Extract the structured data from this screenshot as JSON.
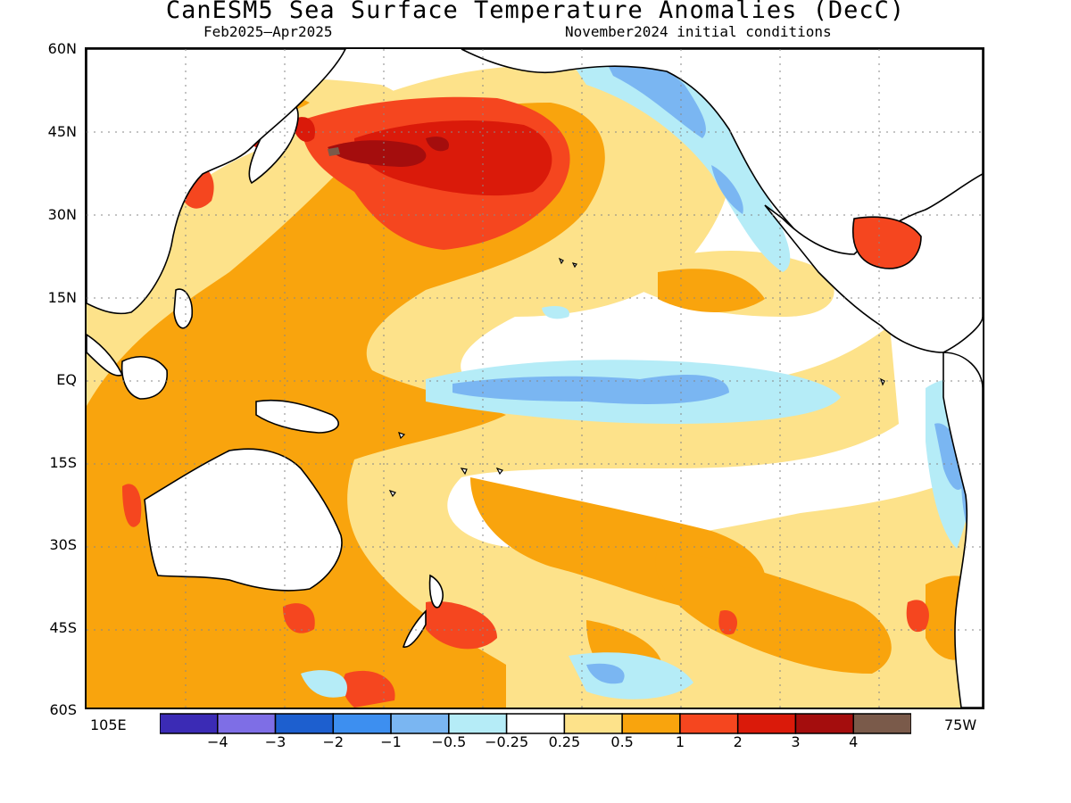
{
  "title": "CanESM5 Sea Surface Temperature Anomalies (DecC)",
  "period": "Feb2025–Apr2025",
  "init": "November2024 initial conditions",
  "lat_labels": [
    "60N",
    "45N",
    "30N",
    "15N",
    "EQ",
    "15S",
    "30S",
    "45S",
    "60S"
  ],
  "lon_labels": {
    "left": "105E",
    "right": "75W"
  },
  "colorbar": {
    "colors": [
      "#3b2bb5",
      "#7e6ee6",
      "#1d5fcf",
      "#3d8ff0",
      "#7ab6f2",
      "#b5ecf7",
      "#ffffff",
      "#fde28a",
      "#f9a40d",
      "#f5461f",
      "#da1a0a",
      "#a40d0d",
      "#7a5a4a"
    ],
    "ticks": [
      "−4",
      "−3",
      "−2",
      "−1",
      "−0.5",
      "−0.25",
      "0.25",
      "0.5",
      "1",
      "2",
      "3",
      "4"
    ]
  },
  "colors": {
    "neutral": "#ffffff",
    "weak_warm": "#fde28a",
    "moderate_warm": "#f9a40d",
    "strong_warm": "#f5461f",
    "very_strong_warm": "#da1a0a",
    "extreme_warm": "#a40d0d",
    "weak_cool": "#b5ecf7",
    "moderate_cool": "#7ab6f2",
    "strong_cool": "#3d8ff0",
    "land": "#ffffff",
    "coast": "#000000"
  }
}
